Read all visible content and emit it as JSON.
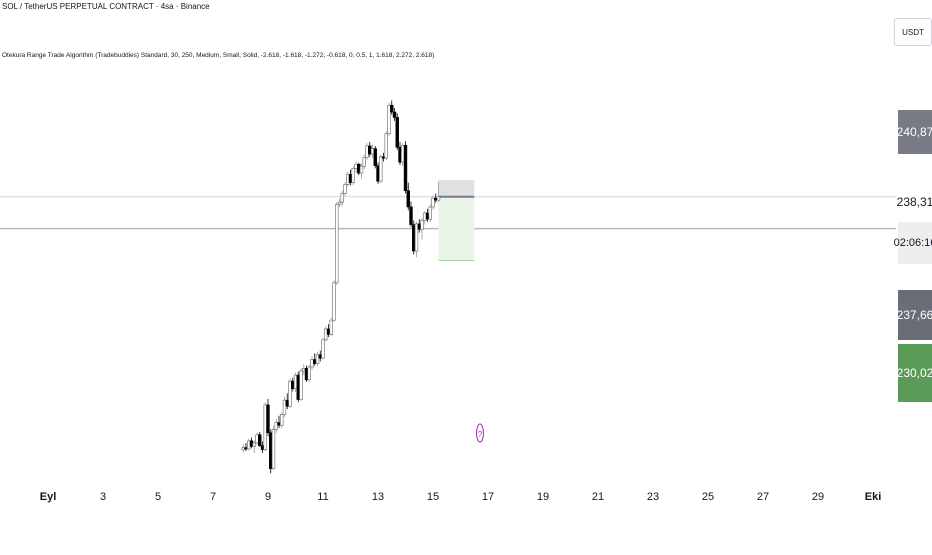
{
  "header": {
    "symbol_title": "SOL / TetherUS PERPETUAL CONTRACT · 4sa · Binance",
    "indicator_line": "Otekura Range Trade Algorithm (Tradebuddies) Standard, 30, 250, Medium, Small, Solid, -2.618, -1.618, -1.272, -0.618, 0, 0.5, 1, 1.618, 2.272, 2.618)",
    "currency": "USDT"
  },
  "price_axis": {
    "high_tag": "240,87",
    "current_price": "238,31",
    "countdown": "02:06:16",
    "mid_tag": "237,66",
    "target_tag": "230,02"
  },
  "colors": {
    "bull_candle": "#ffffff",
    "bear_candle": "#000000",
    "zone_top": "#e0e0e0",
    "zone_bottom": "#e8f4e8",
    "event_marker": "#9c27b0"
  },
  "event_marker_label": "?",
  "chart_data": {
    "type": "candlestick",
    "title": "",
    "xlabel": "",
    "ylabel": "",
    "x_ticks": [
      "Eyl",
      "3",
      "5",
      "7",
      "9",
      "11",
      "13",
      "15",
      "17",
      "19",
      "21",
      "23",
      "25",
      "27",
      "29",
      "Eki"
    ],
    "tick_day": [
      1,
      3,
      5,
      7,
      9,
      11,
      13,
      15,
      17,
      19,
      21,
      23,
      25,
      27,
      29,
      31
    ],
    "ylim": [
      198,
      257
    ],
    "grid": false,
    "candles": [
      [
        8.1,
        201,
        201.8,
        200.6,
        201.3
      ],
      [
        8.2,
        201.3,
        202,
        200.8,
        201.1
      ],
      [
        8.3,
        201.1,
        202.6,
        200.9,
        202.3
      ],
      [
        8.4,
        202.3,
        202.8,
        201.2,
        201.5
      ],
      [
        8.5,
        201.5,
        202.3,
        200.5,
        202
      ],
      [
        8.6,
        202,
        203.5,
        201.7,
        203.2
      ],
      [
        8.7,
        203.2,
        203.6,
        201.4,
        201.6
      ],
      [
        8.8,
        201.6,
        202.2,
        200.5,
        201
      ],
      [
        8.9,
        201,
        208,
        200.8,
        207.6
      ],
      [
        9,
        207.6,
        208.5,
        203,
        203.5
      ],
      [
        9.1,
        203.5,
        204,
        197.5,
        198.2
      ],
      [
        9.2,
        198.2,
        204.5,
        198,
        204
      ],
      [
        9.3,
        204,
        205.5,
        203.5,
        205
      ],
      [
        9.4,
        205,
        206,
        204.2,
        204.6
      ],
      [
        9.5,
        204.6,
        206.5,
        204.2,
        206.2
      ],
      [
        9.6,
        206.2,
        208.8,
        205.8,
        208.3
      ],
      [
        9.7,
        208.3,
        209.3,
        207,
        207.4
      ],
      [
        9.8,
        207.4,
        211.5,
        207.2,
        211.1
      ],
      [
        9.9,
        211.1,
        211.6,
        209.6,
        210
      ],
      [
        10,
        210,
        212.4,
        209.5,
        212
      ],
      [
        10.1,
        212,
        212.5,
        208,
        208.4
      ],
      [
        10.2,
        208.4,
        213,
        208.2,
        212.6
      ],
      [
        10.3,
        212.6,
        213.6,
        212,
        213
      ],
      [
        10.4,
        213,
        213.4,
        211,
        211.3
      ],
      [
        10.5,
        211.3,
        213.5,
        211,
        213.2
      ],
      [
        10.6,
        213.2,
        214.8,
        212.8,
        214.3
      ],
      [
        10.7,
        214.3,
        215.2,
        213.4,
        213.7
      ],
      [
        10.8,
        213.7,
        215.4,
        213.3,
        215
      ],
      [
        10.9,
        215,
        215.6,
        214,
        214.5
      ],
      [
        11,
        214.5,
        217.5,
        214.3,
        217.2
      ],
      [
        11.1,
        217.2,
        219.2,
        217,
        218.8
      ],
      [
        11.2,
        218.8,
        219.5,
        217.6,
        218
      ],
      [
        11.3,
        218,
        220.5,
        217.8,
        220.1
      ],
      [
        11.4,
        220.1,
        226,
        219.8,
        225.6
      ],
      [
        11.5,
        225.6,
        237.5,
        225.3,
        237.2
      ],
      [
        11.6,
        237.2,
        238,
        236.8,
        237.5
      ],
      [
        11.7,
        237.5,
        239.2,
        236.9,
        238.8
      ],
      [
        11.8,
        238.8,
        240.5,
        238.4,
        240.1
      ],
      [
        11.9,
        240.1,
        242,
        239.8,
        241.6
      ],
      [
        12,
        241.6,
        242.3,
        240,
        240.4
      ],
      [
        12.1,
        240.4,
        242.8,
        240,
        242.5
      ],
      [
        12.2,
        242.5,
        243.5,
        241.8,
        243.1
      ],
      [
        12.3,
        243.1,
        243.3,
        241.5,
        241.8
      ],
      [
        12.4,
        241.8,
        243.2,
        241,
        242.8
      ],
      [
        12.5,
        242.8,
        244.5,
        242.4,
        244.1
      ],
      [
        12.6,
        244.1,
        246.2,
        243.8,
        245.8
      ],
      [
        12.7,
        245.8,
        246.4,
        244.2,
        244.6
      ],
      [
        12.8,
        244.6,
        246,
        244,
        245.4
      ],
      [
        12.9,
        245.4,
        245.8,
        242.5,
        242.9
      ],
      [
        13,
        242.9,
        243.4,
        240.2,
        240.6
      ],
      [
        13.1,
        240.6,
        244.5,
        240.3,
        244.2
      ],
      [
        13.2,
        244.2,
        244.8,
        243.5,
        244
      ],
      [
        13.3,
        244,
        248,
        243.7,
        247.6
      ],
      [
        13.4,
        247.6,
        252.2,
        247.2,
        251.8
      ],
      [
        13.5,
        251.8,
        252.5,
        250.4,
        250.8
      ],
      [
        13.6,
        250.8,
        251.4,
        249.5,
        250
      ],
      [
        13.7,
        250,
        250.6,
        245.2,
        245.6
      ],
      [
        13.8,
        245.6,
        246.4,
        243,
        243.4
      ],
      [
        13.9,
        243.4,
        246.2,
        242.8,
        245.9
      ],
      [
        14,
        245.9,
        246.5,
        238.8,
        239.2
      ],
      [
        14.1,
        239.2,
        240.4,
        236.3,
        236.8
      ],
      [
        14.2,
        236.8,
        237.6,
        233.8,
        234.2
      ],
      [
        14.3,
        234.2,
        234.8,
        229.8,
        230.3
      ],
      [
        14.4,
        230.3,
        234.6,
        229.4,
        234.3
      ],
      [
        14.5,
        234.3,
        235,
        233,
        233.5
      ],
      [
        14.6,
        233.5,
        235.2,
        232,
        234.8
      ],
      [
        14.7,
        234.8,
        236.2,
        234.2,
        235.9
      ],
      [
        14.8,
        235.9,
        236.5,
        234.6,
        235
      ],
      [
        14.9,
        235,
        237.2,
        234.6,
        236.8
      ],
      [
        15,
        236.8,
        238.5,
        236.4,
        238.1
      ],
      [
        15.1,
        238.1,
        238.8,
        237.4,
        237.8
      ],
      [
        15.2,
        237.8,
        240.5,
        237.5,
        238.3
      ]
    ],
    "zone": {
      "x_start": 15.2,
      "x_end": 16.5,
      "upper_top": 240.8,
      "entry": 238.3,
      "lower_bottom": 228.9
    },
    "horizontal_lines": {
      "current_price": 238.31,
      "lower_level": 233.6
    }
  }
}
